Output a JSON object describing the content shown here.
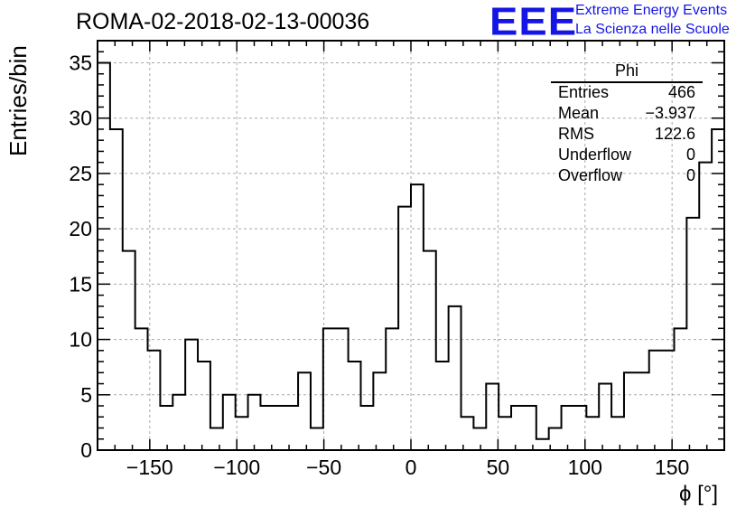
{
  "header": {
    "title": "ROMA-02-2018-02-13-00036",
    "logo_text": "EEE",
    "logo_line1": "Extreme Energy Events",
    "logo_line2": "La Scienza nelle Scuole"
  },
  "stats": {
    "title": "Phi",
    "rows": [
      {
        "key": "Entries",
        "value": "466"
      },
      {
        "key": "Mean",
        "value": "−3.937"
      },
      {
        "key": "RMS",
        "value": "122.6"
      },
      {
        "key": "Underflow",
        "value": "0"
      },
      {
        "key": "Overflow",
        "value": "0"
      }
    ]
  },
  "chart_data": {
    "type": "bar",
    "style": "step-histogram",
    "xlabel": "ϕ [°]",
    "ylabel": "Entries/bin",
    "xlim": [
      -180,
      180
    ],
    "ylim": [
      0,
      37
    ],
    "grid": true,
    "x_ticks": [
      -150,
      -100,
      -50,
      0,
      50,
      100,
      150
    ],
    "x_tick_labels": [
      "−150",
      "−100",
      "−50",
      "0",
      "50",
      "100",
      "150"
    ],
    "y_ticks": [
      0,
      5,
      10,
      15,
      20,
      25,
      30,
      35
    ],
    "y_tick_labels": [
      "0",
      "5",
      "10",
      "15",
      "20",
      "25",
      "30",
      "35"
    ],
    "bin_edges_start": -180,
    "bin_width": 7.2,
    "values": [
      35,
      29,
      18,
      11,
      9,
      4,
      5,
      10,
      8,
      2,
      5,
      3,
      5,
      4,
      4,
      4,
      7,
      2,
      11,
      11,
      8,
      4,
      7,
      11,
      22,
      24,
      18,
      8,
      13,
      3,
      2,
      6,
      3,
      4,
      4,
      1,
      2,
      4,
      4,
      3,
      6,
      3,
      7,
      7,
      9,
      9,
      11,
      21,
      26,
      29
    ],
    "line_color": "#000000",
    "grid_color": "#a8a8a8"
  }
}
